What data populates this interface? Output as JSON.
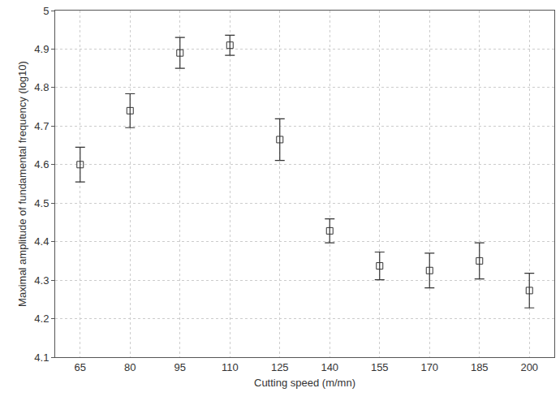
{
  "chart_data": {
    "type": "scatter",
    "x_label": "Cutting speed (m/mn)",
    "y_label": "Maximal amplitude of fundamental frequency (log10)",
    "categories": [
      "65",
      "80",
      "95",
      "110",
      "125",
      "140",
      "155",
      "170",
      "185",
      "200"
    ],
    "values": [
      4.6,
      4.74,
      4.89,
      4.91,
      4.665,
      4.428,
      4.337,
      4.325,
      4.35,
      4.273
    ],
    "errors": [
      0.045,
      0.044,
      0.04,
      0.026,
      0.054,
      0.031,
      0.036,
      0.045,
      0.047,
      0.045
    ],
    "color": "#333333",
    "marker": "square-open",
    "ylim": [
      4.1,
      5
    ],
    "yticks": [
      4.1,
      4.2,
      4.3,
      4.4,
      4.5,
      4.6,
      4.7,
      4.8,
      4.9,
      5
    ],
    "grid": true
  }
}
